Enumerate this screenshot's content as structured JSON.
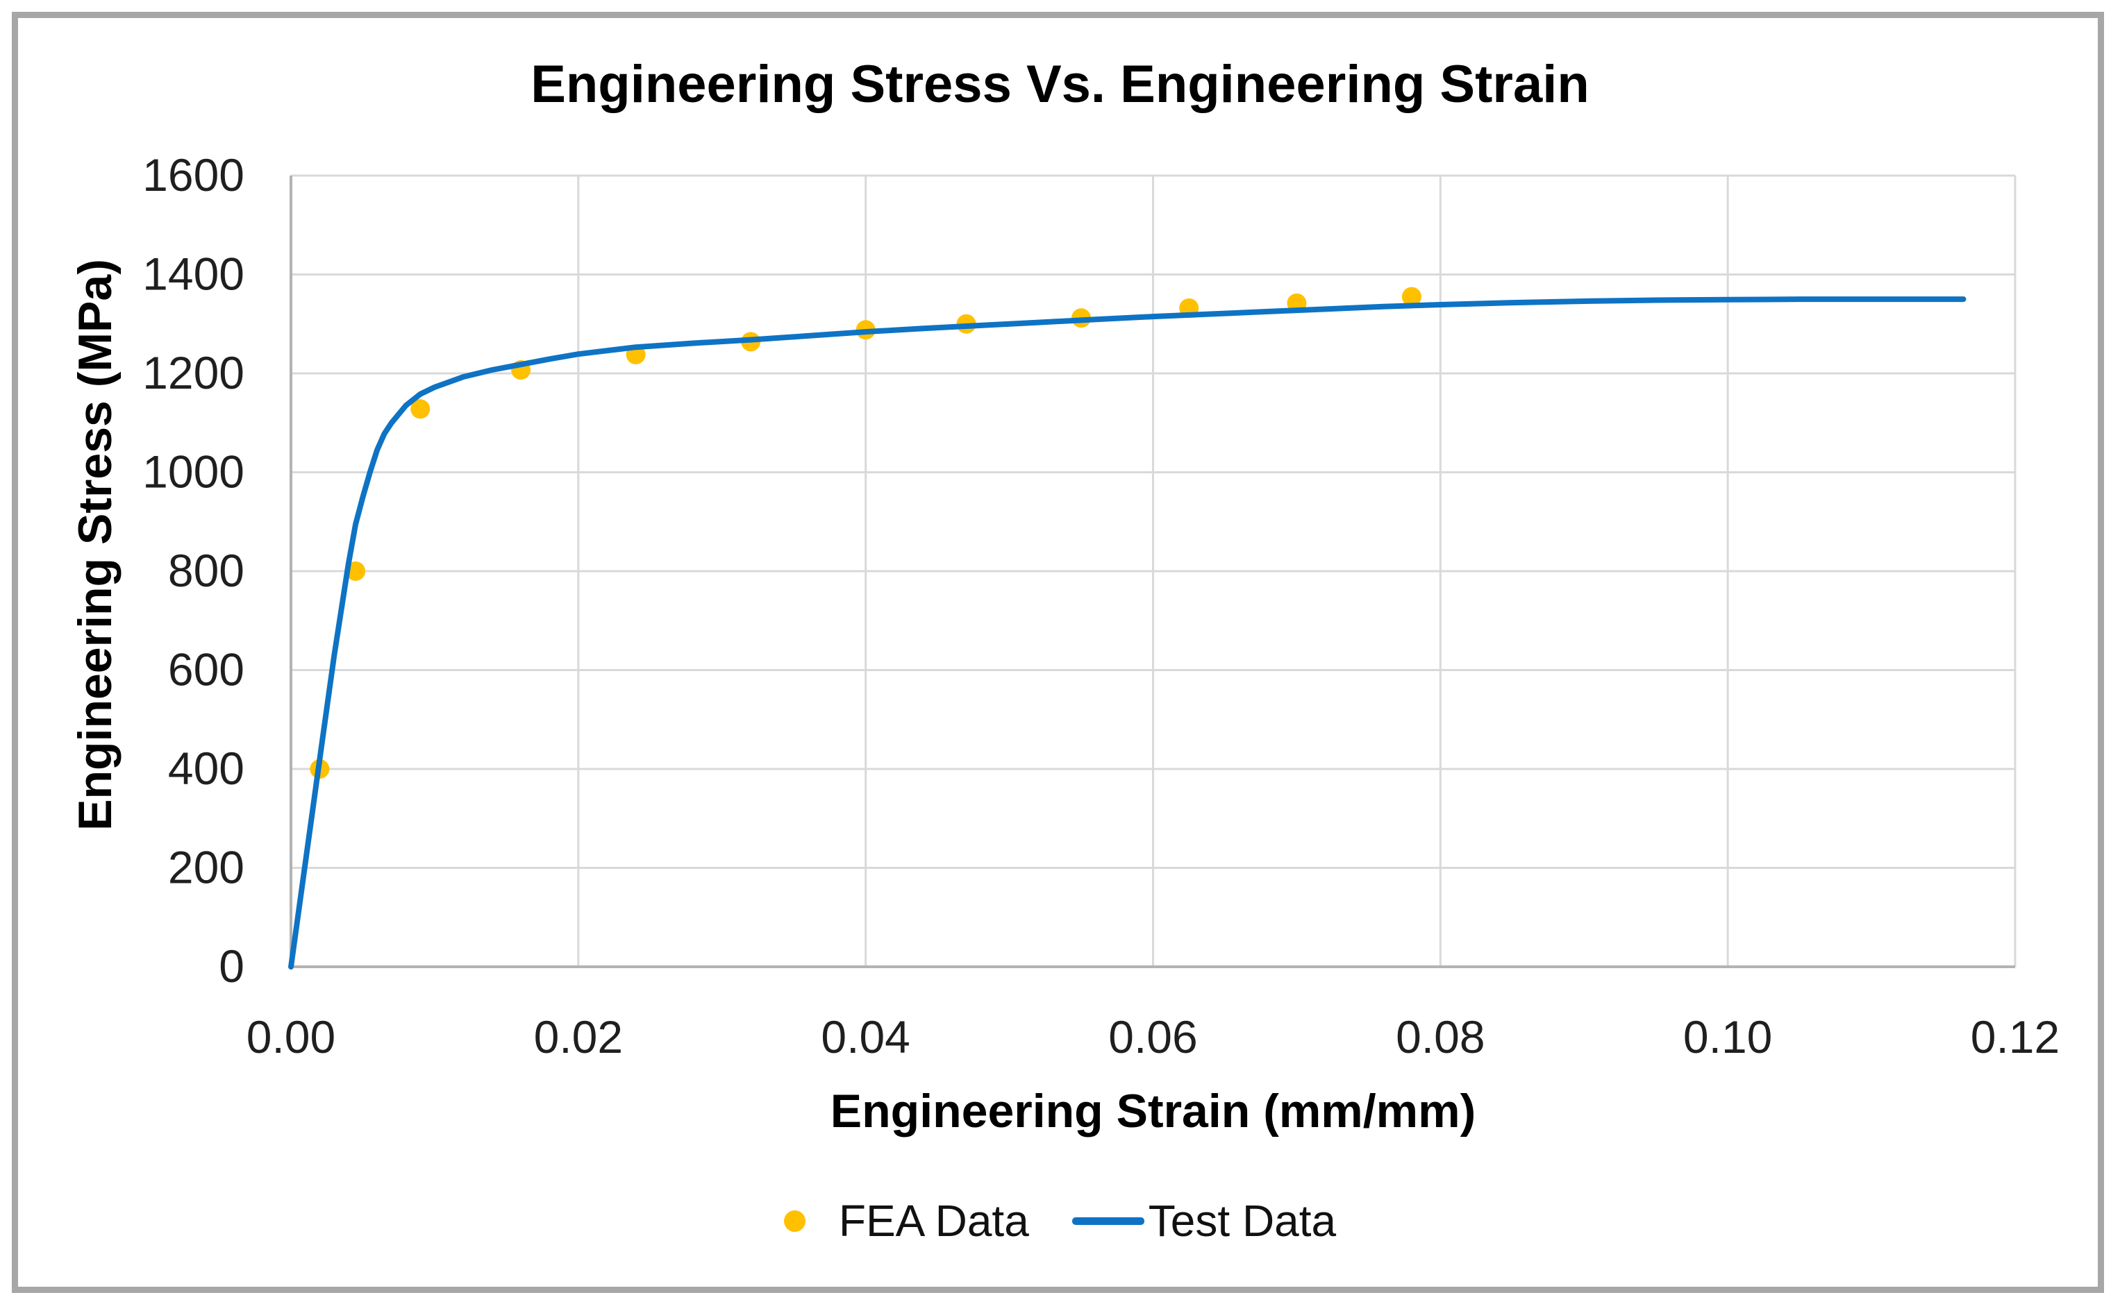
{
  "page": {
    "background": "#FFFFFF",
    "frame_border_color": "#A7A7A7"
  },
  "chart_data": {
    "type": "line",
    "title": "Engineering Stress Vs. Engineering Strain",
    "xlabel": "Engineering Strain (mm/mm)",
    "ylabel": "Engineering Stress (MPa)",
    "xlim": [
      0,
      0.12
    ],
    "ylim": [
      0,
      1600
    ],
    "grid": true,
    "legend_position": "bottom",
    "colors": {
      "marker": "#FFC000",
      "line": "#0E73C4",
      "grid": "#D9D9D9",
      "axis": "#B3B3B3",
      "tick_text": "#1F1F1F"
    },
    "x_ticks": [
      {
        "v": 0.0,
        "label": "0.00"
      },
      {
        "v": 0.02,
        "label": "0.02"
      },
      {
        "v": 0.04,
        "label": "0.04"
      },
      {
        "v": 0.06,
        "label": "0.06"
      },
      {
        "v": 0.08,
        "label": "0.08"
      },
      {
        "v": 0.1,
        "label": "0.10"
      },
      {
        "v": 0.12,
        "label": "0.12"
      }
    ],
    "y_ticks": [
      {
        "v": 0,
        "label": "0"
      },
      {
        "v": 200,
        "label": "200"
      },
      {
        "v": 400,
        "label": "400"
      },
      {
        "v": 600,
        "label": "600"
      },
      {
        "v": 800,
        "label": "800"
      },
      {
        "v": 1000,
        "label": "1000"
      },
      {
        "v": 1200,
        "label": "1200"
      },
      {
        "v": 1400,
        "label": "1400"
      },
      {
        "v": 1600,
        "label": "1600"
      }
    ],
    "series": [
      {
        "name": "FEA Data",
        "type": "scatter",
        "color": "#FFC000",
        "points": [
          [
            0.002,
            400
          ],
          [
            0.0045,
            800
          ],
          [
            0.009,
            1128
          ],
          [
            0.016,
            1207
          ],
          [
            0.024,
            1238
          ],
          [
            0.032,
            1264
          ],
          [
            0.04,
            1288
          ],
          [
            0.047,
            1300
          ],
          [
            0.055,
            1312
          ],
          [
            0.0625,
            1332
          ],
          [
            0.07,
            1342
          ],
          [
            0.078,
            1355
          ]
        ]
      },
      {
        "name": "Test Data",
        "type": "line",
        "color": "#0E73C4",
        "points": [
          [
            0.0,
            0
          ],
          [
            0.001,
            210
          ],
          [
            0.002,
            420
          ],
          [
            0.003,
            628
          ],
          [
            0.004,
            815
          ],
          [
            0.0045,
            895
          ],
          [
            0.005,
            950
          ],
          [
            0.0055,
            1000
          ],
          [
            0.006,
            1045
          ],
          [
            0.0065,
            1078
          ],
          [
            0.007,
            1100
          ],
          [
            0.008,
            1135
          ],
          [
            0.009,
            1158
          ],
          [
            0.01,
            1172
          ],
          [
            0.012,
            1193
          ],
          [
            0.014,
            1207
          ],
          [
            0.016,
            1218
          ],
          [
            0.018,
            1229
          ],
          [
            0.02,
            1239
          ],
          [
            0.024,
            1253
          ],
          [
            0.028,
            1261
          ],
          [
            0.032,
            1268
          ],
          [
            0.036,
            1276
          ],
          [
            0.04,
            1284
          ],
          [
            0.044,
            1291
          ],
          [
            0.048,
            1297
          ],
          [
            0.052,
            1303
          ],
          [
            0.056,
            1309
          ],
          [
            0.06,
            1315
          ],
          [
            0.064,
            1320
          ],
          [
            0.068,
            1325
          ],
          [
            0.072,
            1330
          ],
          [
            0.076,
            1335
          ],
          [
            0.08,
            1339
          ],
          [
            0.085,
            1343
          ],
          [
            0.09,
            1346
          ],
          [
            0.095,
            1348
          ],
          [
            0.1,
            1349
          ],
          [
            0.105,
            1350
          ],
          [
            0.11,
            1350
          ],
          [
            0.1164,
            1350
          ]
        ]
      }
    ]
  }
}
